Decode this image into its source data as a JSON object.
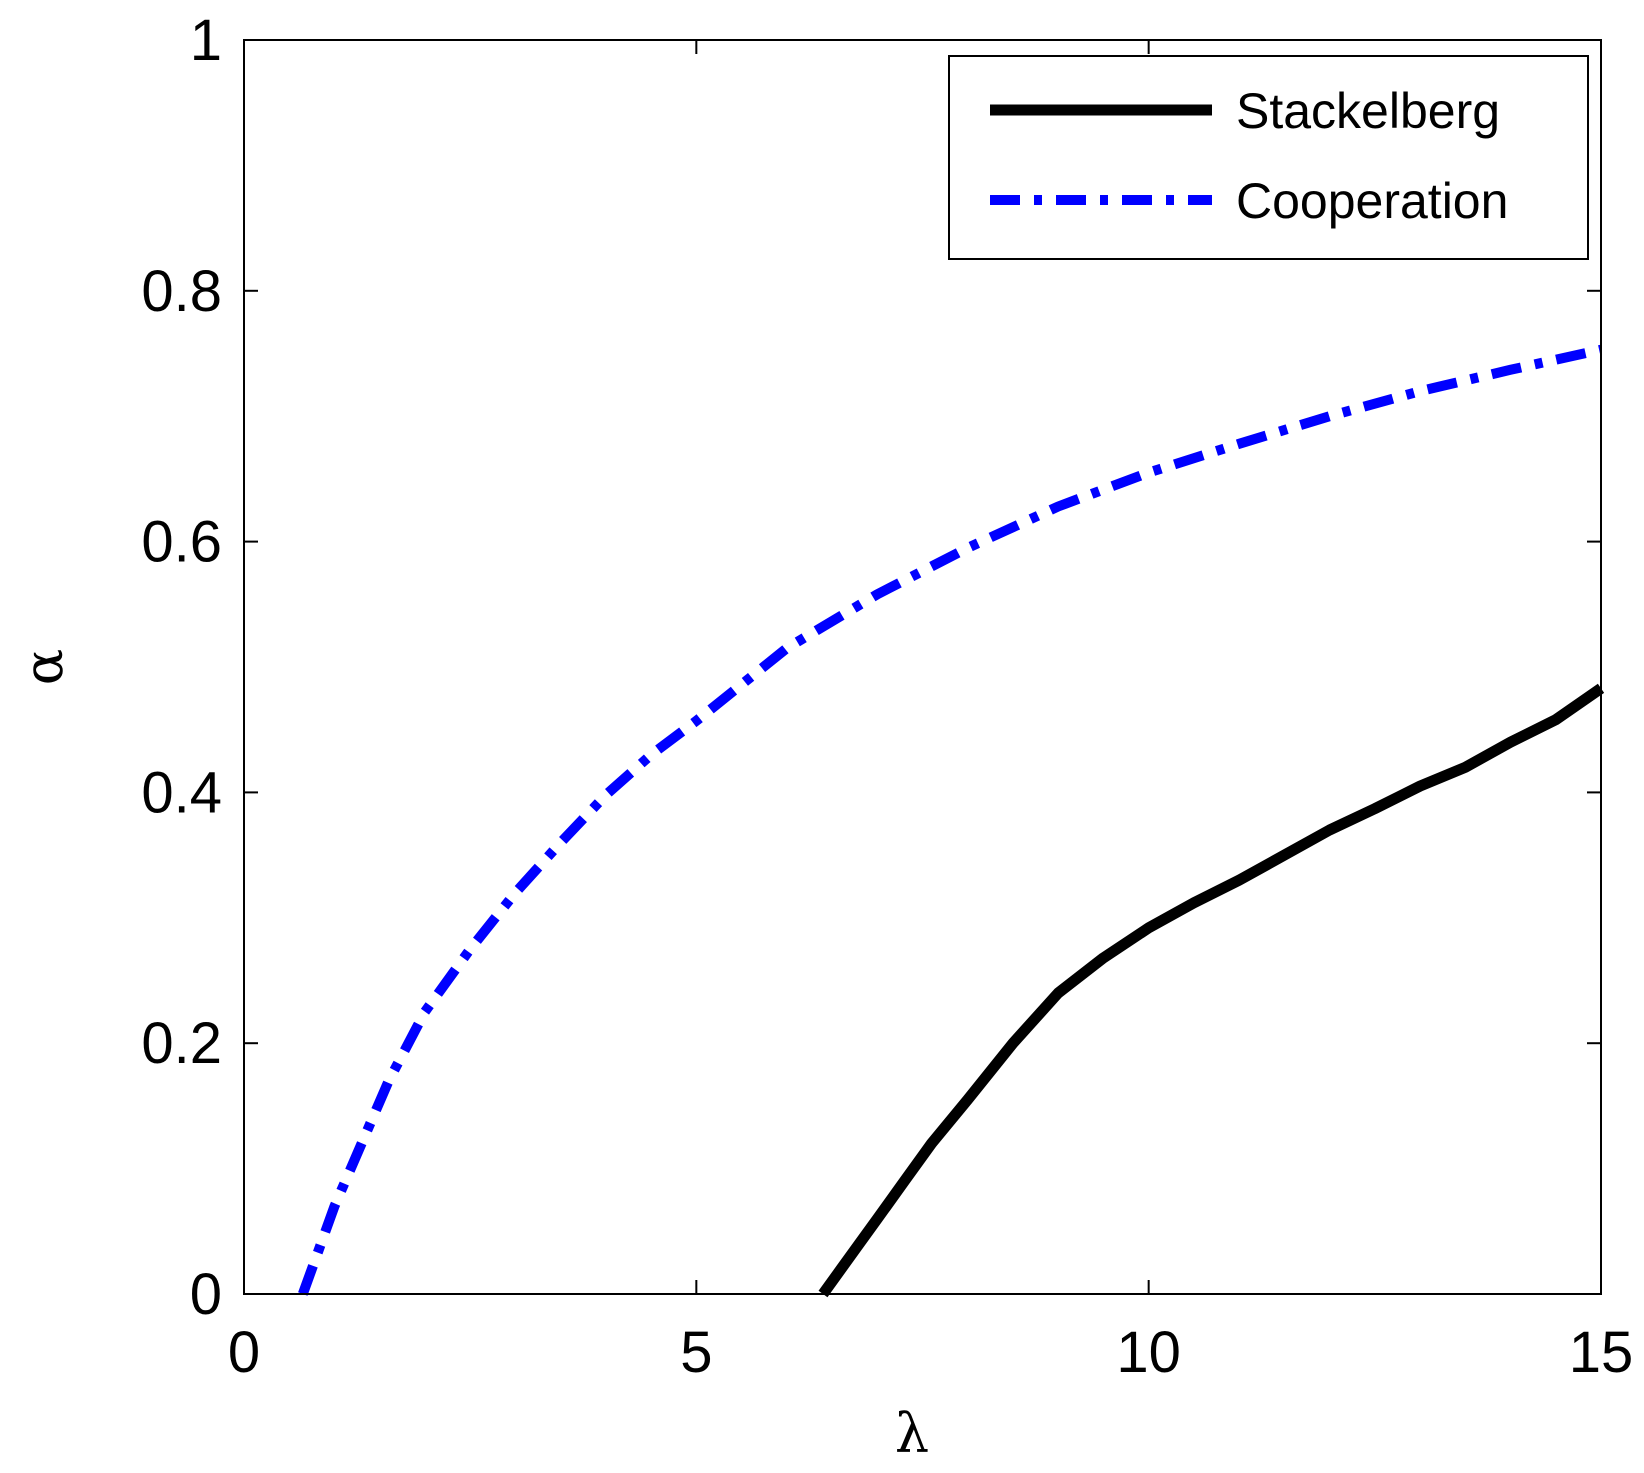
{
  "chart_data": {
    "type": "line",
    "title": "",
    "xlabel": "λ",
    "ylabel": "α",
    "xlim": [
      0,
      15
    ],
    "ylim": [
      0,
      1
    ],
    "xticks": [
      0,
      5,
      10,
      15
    ],
    "xtick_labels": [
      "0",
      "5",
      "10",
      "15"
    ],
    "yticks": [
      0,
      0.2,
      0.4,
      0.6,
      0.8,
      1
    ],
    "ytick_labels": [
      "0",
      "0.2",
      "0.4",
      "0.6",
      "0.8",
      "1"
    ],
    "grid": false,
    "legend_position": "top-right",
    "series": [
      {
        "name": "Stackelberg",
        "color": "#000000",
        "style": "solid",
        "x": [
          6.4,
          6.6,
          6.8,
          7.0,
          7.3,
          7.6,
          8.0,
          8.5,
          9.0,
          9.5,
          10.0,
          10.5,
          11.0,
          11.5,
          12.0,
          12.5,
          13.0,
          13.5,
          14.0,
          14.5,
          15.0
        ],
        "y": [
          0.0,
          0.02,
          0.04,
          0.06,
          0.09,
          0.12,
          0.155,
          0.2,
          0.24,
          0.268,
          0.292,
          0.312,
          0.33,
          0.35,
          0.37,
          0.387,
          0.405,
          0.42,
          0.44,
          0.458,
          0.483
        ]
      },
      {
        "name": "Cooperation",
        "color": "#0000ff",
        "style": "dashdot",
        "x": [
          0.65,
          0.8,
          1.0,
          1.3,
          1.6,
          2.0,
          2.5,
          3.0,
          3.5,
          4.0,
          4.5,
          5.0,
          6.0,
          7.0,
          8.0,
          9.0,
          10.0,
          11.0,
          12.0,
          13.0,
          14.0,
          15.0
        ],
        "y": [
          0.0,
          0.03,
          0.07,
          0.12,
          0.17,
          0.225,
          0.275,
          0.32,
          0.36,
          0.398,
          0.43,
          0.457,
          0.515,
          0.558,
          0.595,
          0.628,
          0.655,
          0.678,
          0.7,
          0.72,
          0.737,
          0.753
        ]
      }
    ]
  }
}
